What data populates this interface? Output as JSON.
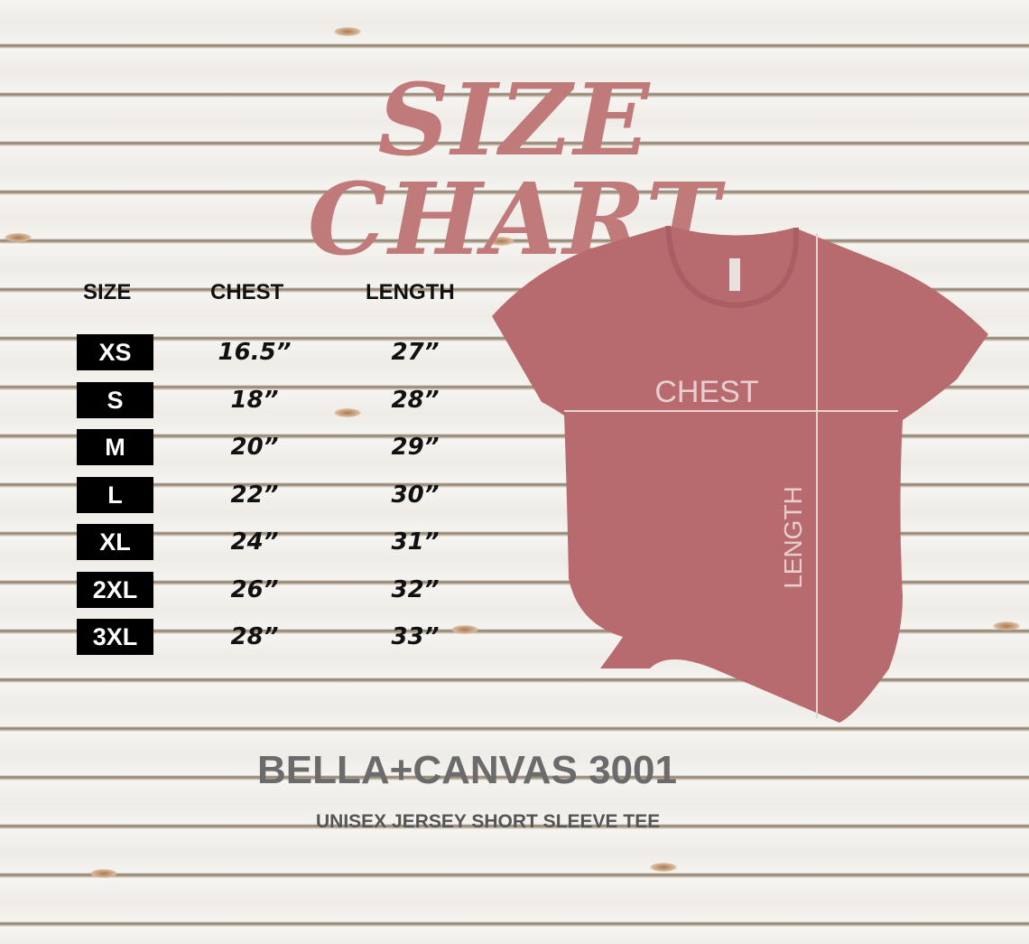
{
  "title": "SIZE CHART",
  "table": {
    "headers": {
      "size": "SIZE",
      "chest": "CHEST",
      "length": "LENGTH"
    },
    "rows": [
      {
        "size": "XS",
        "chest": "16.5”",
        "length": "27”"
      },
      {
        "size": "S",
        "chest": "18”",
        "length": "28”"
      },
      {
        "size": "M",
        "chest": "20”",
        "length": "29”"
      },
      {
        "size": "L",
        "chest": "22”",
        "length": "30”"
      },
      {
        "size": "XL",
        "chest": "24”",
        "length": "31”"
      },
      {
        "size": "2XL",
        "chest": "26”",
        "length": "32”"
      },
      {
        "size": "3XL",
        "chest": "28”",
        "length": "33”"
      }
    ]
  },
  "shirt": {
    "chest_label": "CHEST",
    "length_label": "LENGTH",
    "color": "#b86b6f"
  },
  "brand": {
    "name": "BELLA+CANVAS 3001",
    "subtitle": "UNISEX JERSEY SHORT SLEEVE TEE"
  },
  "colors": {
    "title": "#c07a7a",
    "size_box": "#000000"
  }
}
